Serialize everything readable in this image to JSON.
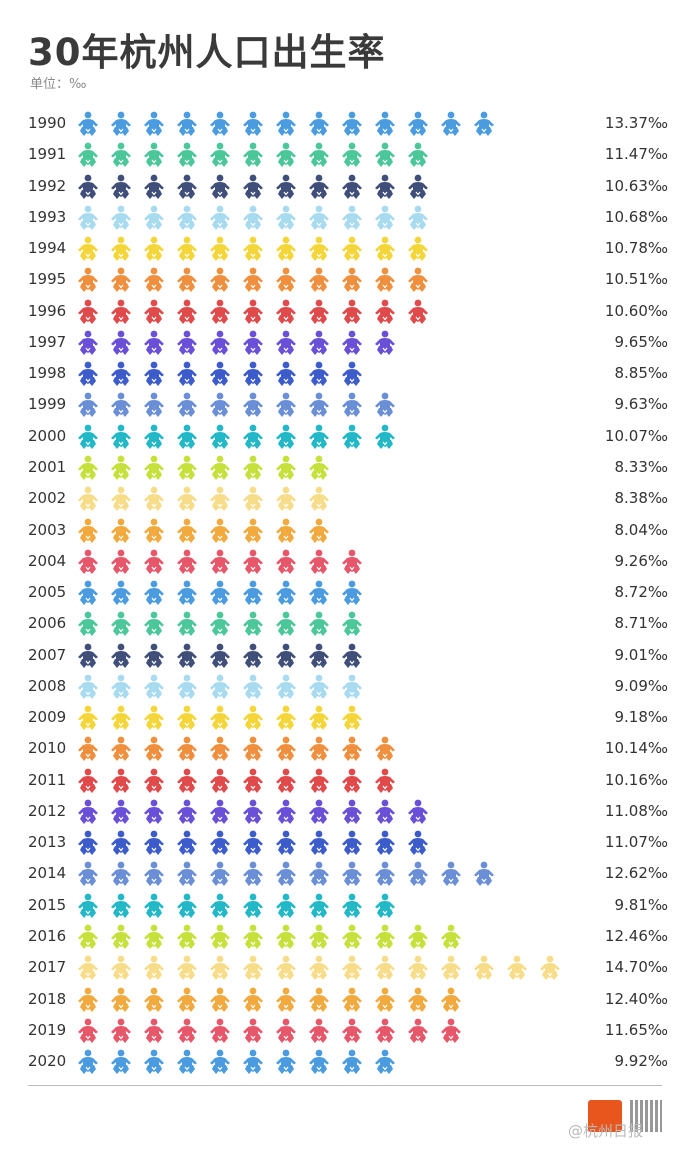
{
  "title": "30年杭州人口出生率",
  "unit": "单位：‰",
  "watermark": "@杭州日报",
  "chart_data": {
    "type": "pictogram",
    "title": "30年杭州人口出生率",
    "unit": "‰",
    "icon": "baby-icon",
    "icons_per_row": "value rounded to nearest integer",
    "categories": [
      "1990",
      "1991",
      "1992",
      "1993",
      "1994",
      "1995",
      "1996",
      "1997",
      "1998",
      "1999",
      "2000",
      "2001",
      "2002",
      "2003",
      "2004",
      "2005",
      "2006",
      "2007",
      "2008",
      "2009",
      "2010",
      "2011",
      "2012",
      "2013",
      "2014",
      "2015",
      "2016",
      "2017",
      "2018",
      "2019",
      "2020"
    ],
    "values": [
      13.37,
      11.47,
      10.63,
      10.68,
      10.78,
      10.51,
      10.6,
      9.65,
      8.85,
      9.63,
      10.07,
      8.33,
      8.38,
      8.04,
      9.26,
      8.72,
      8.71,
      9.01,
      9.09,
      9.18,
      10.14,
      10.16,
      11.08,
      11.07,
      12.62,
      9.81,
      12.46,
      14.7,
      12.4,
      11.65,
      9.92
    ],
    "labels": [
      "13.37‰",
      "11.47‰",
      "10.63‰",
      "10.68‰",
      "10.78‰",
      "10.51‰",
      "10.60‰",
      "9.65‰",
      "8.85‰",
      "9.63‰",
      "10.07‰",
      "8.33‰",
      "8.38‰",
      "8.04‰",
      "9.26‰",
      "8.72‰",
      "8.71‰",
      "9.01‰",
      "9.09‰",
      "9.18‰",
      "10.14‰",
      "10.16‰",
      "11.08‰",
      "11.07‰",
      "12.62‰",
      "9.81‰",
      "12.46‰",
      "14.70‰",
      "12.40‰",
      "11.65‰",
      "9.92‰"
    ],
    "color_cycle": [
      "#4a9be0",
      "#4cc79a",
      "#3f4f7a",
      "#a8daf0",
      "#f5d63a",
      "#f0903e",
      "#e04a4a",
      "#6a4fd8",
      "#3d5ccc",
      "#6a8fd6",
      "#22b8c8",
      "#c6e03c",
      "#f7dd8a",
      "#f2aa3e",
      "#e8566a"
    ]
  }
}
